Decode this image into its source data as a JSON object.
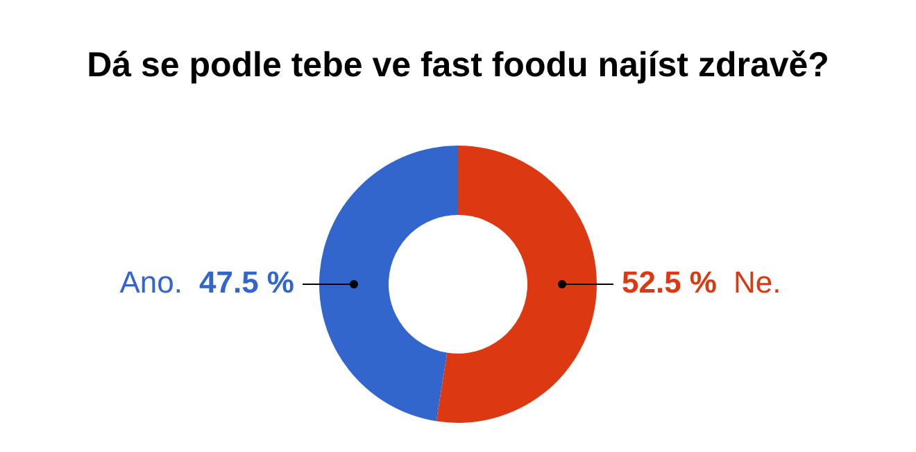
{
  "chart_data": {
    "type": "donut",
    "title": "Dá se podle tebe ve fast foodu najíst zdravě?",
    "categories": [
      "Ne.",
      "Ano."
    ],
    "values": [
      52.5,
      47.5
    ],
    "colors": [
      "#dc3912",
      "#3366cc"
    ],
    "value_labels": [
      "52.5 %",
      "47.5 %"
    ],
    "legend": false
  }
}
